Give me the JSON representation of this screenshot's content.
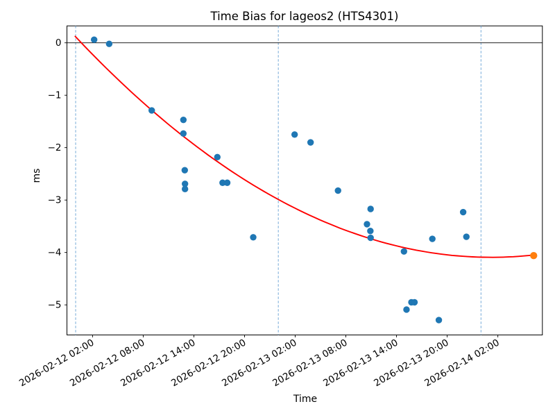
{
  "chart_data": {
    "type": "scatter",
    "title": "Time Bias for lageos2 (HTS4301)",
    "xlabel": "Time",
    "ylabel": "ms",
    "x_time_origin": "2026-02-12 00:00",
    "x_unit": "hours_since_origin",
    "xlim": [
      -1.03,
      55.27
    ],
    "ylim": [
      -5.574,
      0.323
    ],
    "grid": false,
    "legend": "none",
    "x_ticks": [
      {
        "t": 2,
        "label": "2026-02-12 02:00"
      },
      {
        "t": 8,
        "label": "2026-02-12 08:00"
      },
      {
        "t": 14,
        "label": "2026-02-12 14:00"
      },
      {
        "t": 20,
        "label": "2026-02-12 20:00"
      },
      {
        "t": 26,
        "label": "2026-02-13 02:00"
      },
      {
        "t": 32,
        "label": "2026-02-13 08:00"
      },
      {
        "t": 38,
        "label": "2026-02-13 14:00"
      },
      {
        "t": 44,
        "label": "2026-02-13 20:00"
      },
      {
        "t": 50,
        "label": "2026-02-14 02:00"
      }
    ],
    "y_ticks": [
      {
        "v": 0,
        "label": "0"
      },
      {
        "v": -1,
        "label": "−1"
      },
      {
        "v": -2,
        "label": "−2"
      },
      {
        "v": -3,
        "label": "−3"
      },
      {
        "v": -4,
        "label": "−4"
      },
      {
        "v": -5,
        "label": "−5"
      }
    ],
    "zero_line_v": 0,
    "day_marker_lines_t": [
      0,
      24,
      48
    ],
    "series": [
      {
        "name": "time-bias-observations",
        "color": "#1f77b4",
        "marker": "circle",
        "marker_radius": 4.7,
        "points": [
          [
            2.19,
            0.06
          ],
          [
            3.97,
            -0.02
          ],
          [
            9.01,
            -1.29
          ],
          [
            12.76,
            -1.47
          ],
          [
            12.76,
            -1.73
          ],
          [
            12.92,
            -2.43
          ],
          [
            12.95,
            -2.69
          ],
          [
            12.95,
            -2.79
          ],
          [
            16.78,
            -2.18
          ],
          [
            17.4,
            -2.67
          ],
          [
            17.95,
            -2.67
          ],
          [
            21.03,
            -3.71
          ],
          [
            25.93,
            -1.75
          ],
          [
            27.82,
            -1.9
          ],
          [
            31.07,
            -2.82
          ],
          [
            34.93,
            -3.17
          ],
          [
            34.5,
            -3.46
          ],
          [
            34.9,
            -3.59
          ],
          [
            34.93,
            -3.72
          ],
          [
            38.88,
            -3.98
          ],
          [
            39.18,
            -5.09
          ],
          [
            39.76,
            -4.95
          ],
          [
            40.13,
            -4.95
          ],
          [
            42.24,
            -3.74
          ],
          [
            43.01,
            -5.29
          ],
          [
            45.89,
            -3.23
          ],
          [
            46.27,
            -3.7
          ]
        ]
      },
      {
        "name": "predicted-latest-point",
        "color": "#ff7f0e",
        "marker": "circle",
        "marker_radius": 5.2,
        "points": [
          [
            54.24,
            -4.06
          ]
        ]
      }
    ],
    "fit_curve": {
      "name": "quadratic-fit",
      "color": "#ff0000",
      "line_width": 1.9,
      "coeffs_t2_t1_t0": [
        0.001737,
        -0.17096,
        0.11403
      ],
      "t_range": [
        -0.05,
        54.24
      ],
      "minimum_ms": -4.09
    },
    "style": {
      "background": "#ffffff",
      "axis_color": "#000000",
      "day_line_color": "#74a9d8",
      "day_line_dash": "3.5 2.5",
      "tick_length": 3.5
    }
  }
}
